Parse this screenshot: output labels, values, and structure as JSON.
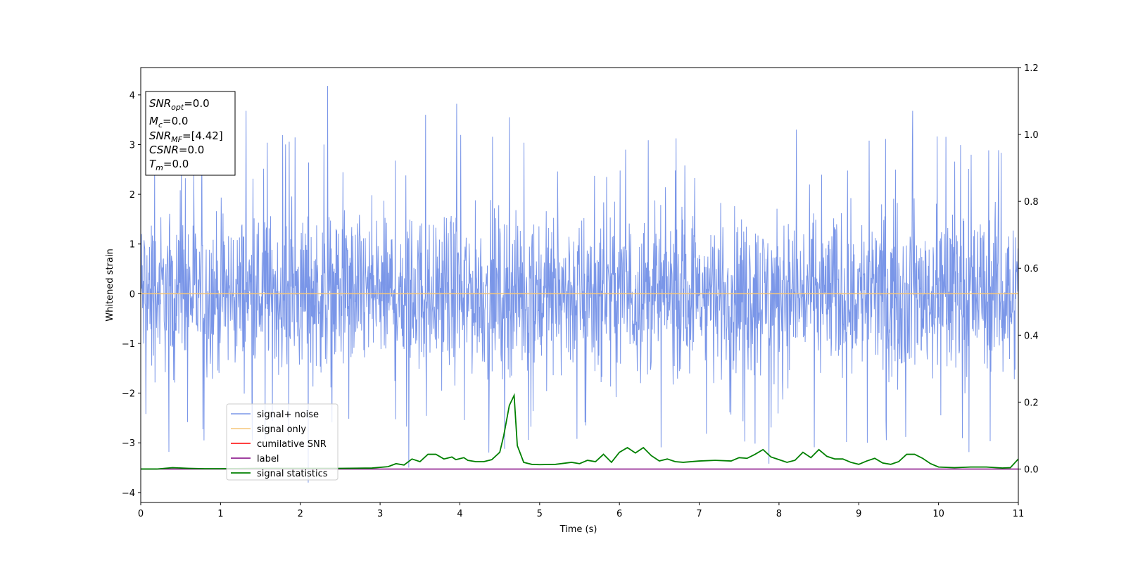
{
  "chart_data": {
    "type": "line",
    "xlabel": "Time (s)",
    "ylabel": "Whitened strain",
    "xlim": [
      0,
      11
    ],
    "ylim": [
      -4.2,
      4.55
    ],
    "y2lim": [
      -0.1,
      1.2
    ],
    "xticks": [
      "0",
      "1",
      "2",
      "3",
      "4",
      "5",
      "6",
      "7",
      "8",
      "9",
      "10",
      "11"
    ],
    "yticks": [
      "−4",
      "−3",
      "−2",
      "−1",
      "0",
      "1",
      "2",
      "3",
      "4"
    ],
    "y2ticks": [
      "0.0",
      "0.2",
      "0.4",
      "0.6",
      "0.8",
      "1.0",
      "1.2"
    ],
    "grid": false,
    "legend_position": "lower-left",
    "stats_box": {
      "snr_opt_main": "SNR",
      "snr_opt_sub": "opt",
      "snr_opt_value": "=0.0",
      "mc_main": "M",
      "mc_sub": "c",
      "mc_value": "=0.0",
      "snr_mf_main": "SNR",
      "snr_mf_sub": "MF",
      "snr_mf_value": "=[4.42]",
      "csnr_main": "CSNR",
      "csnr_value": "=0.0",
      "tm_main": "T",
      "tm_sub": "m",
      "tm_value": "=0.0"
    },
    "series": [
      {
        "name": "signal+ noise",
        "color": "#7a96e8",
        "axis": "left",
        "kind": "noise",
        "envelope": [
          -2.2,
          2.2
        ],
        "peak_points": [
          [
            2.35,
            4.18
          ],
          [
            3.96,
            3.82
          ],
          [
            1.32,
            3.68
          ],
          [
            9.68,
            3.68
          ],
          [
            3.57,
            3.6
          ],
          [
            4.62,
            3.55
          ],
          [
            8.22,
            3.3
          ],
          [
            2.1,
            -3.8
          ],
          [
            3.36,
            -3.5
          ],
          [
            7.88,
            -3.42
          ],
          [
            0.79,
            -2.95
          ],
          [
            4.56,
            -3.12
          ],
          [
            5.47,
            -2.92
          ]
        ]
      },
      {
        "name": "signal only",
        "color": "#f5c67a",
        "axis": "left",
        "kind": "flat",
        "value": 0.0
      },
      {
        "name": "cumilative SNR",
        "color": "#ff0000",
        "axis": "right",
        "kind": "flat",
        "value": 0.0,
        "visible": false
      },
      {
        "name": "label",
        "color": "#800080",
        "axis": "right",
        "kind": "flat",
        "value": 0.0
      },
      {
        "name": "signal statistics",
        "color": "#008000",
        "axis": "right",
        "kind": "curve",
        "points": [
          [
            0,
            0.0
          ],
          [
            0.2,
            0.0
          ],
          [
            0.4,
            0.004
          ],
          [
            0.6,
            0.002
          ],
          [
            0.8,
            0.001
          ],
          [
            1.0,
            0.001
          ],
          [
            1.5,
            0.002
          ],
          [
            2.0,
            0.002
          ],
          [
            2.5,
            0.002
          ],
          [
            2.9,
            0.003
          ],
          [
            3.0,
            0.005
          ],
          [
            3.1,
            0.007
          ],
          [
            3.2,
            0.016
          ],
          [
            3.3,
            0.012
          ],
          [
            3.4,
            0.03
          ],
          [
            3.5,
            0.022
          ],
          [
            3.6,
            0.044
          ],
          [
            3.7,
            0.044
          ],
          [
            3.8,
            0.03
          ],
          [
            3.9,
            0.036
          ],
          [
            3.95,
            0.028
          ],
          [
            4.05,
            0.034
          ],
          [
            4.1,
            0.026
          ],
          [
            4.2,
            0.022
          ],
          [
            4.3,
            0.022
          ],
          [
            4.4,
            0.028
          ],
          [
            4.5,
            0.05
          ],
          [
            4.55,
            0.1
          ],
          [
            4.62,
            0.19
          ],
          [
            4.68,
            0.22
          ],
          [
            4.72,
            0.07
          ],
          [
            4.8,
            0.02
          ],
          [
            4.9,
            0.014
          ],
          [
            5.0,
            0.013
          ],
          [
            5.2,
            0.014
          ],
          [
            5.4,
            0.02
          ],
          [
            5.5,
            0.016
          ],
          [
            5.6,
            0.026
          ],
          [
            5.7,
            0.022
          ],
          [
            5.8,
            0.044
          ],
          [
            5.9,
            0.02
          ],
          [
            6.0,
            0.05
          ],
          [
            6.1,
            0.064
          ],
          [
            6.2,
            0.048
          ],
          [
            6.3,
            0.064
          ],
          [
            6.4,
            0.04
          ],
          [
            6.5,
            0.024
          ],
          [
            6.6,
            0.03
          ],
          [
            6.7,
            0.022
          ],
          [
            6.8,
            0.02
          ],
          [
            7.0,
            0.024
          ],
          [
            7.2,
            0.026
          ],
          [
            7.4,
            0.024
          ],
          [
            7.5,
            0.034
          ],
          [
            7.6,
            0.032
          ],
          [
            7.7,
            0.044
          ],
          [
            7.8,
            0.058
          ],
          [
            7.9,
            0.036
          ],
          [
            8.0,
            0.028
          ],
          [
            8.1,
            0.02
          ],
          [
            8.2,
            0.026
          ],
          [
            8.3,
            0.05
          ],
          [
            8.4,
            0.034
          ],
          [
            8.5,
            0.058
          ],
          [
            8.6,
            0.038
          ],
          [
            8.7,
            0.03
          ],
          [
            8.8,
            0.03
          ],
          [
            8.9,
            0.02
          ],
          [
            9.0,
            0.014
          ],
          [
            9.1,
            0.024
          ],
          [
            9.2,
            0.032
          ],
          [
            9.3,
            0.018
          ],
          [
            9.4,
            0.014
          ],
          [
            9.5,
            0.022
          ],
          [
            9.6,
            0.044
          ],
          [
            9.7,
            0.044
          ],
          [
            9.8,
            0.032
          ],
          [
            9.9,
            0.016
          ],
          [
            10.0,
            0.006
          ],
          [
            10.2,
            0.004
          ],
          [
            10.4,
            0.006
          ],
          [
            10.6,
            0.006
          ],
          [
            10.8,
            0.003
          ],
          [
            10.9,
            0.004
          ],
          [
            11.0,
            0.03
          ]
        ]
      }
    ]
  }
}
